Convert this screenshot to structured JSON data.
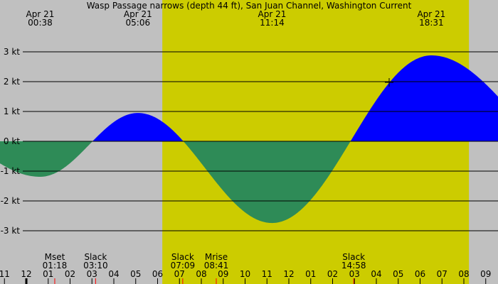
{
  "chart_data": {
    "type": "area",
    "title": "Wasp Passage narrows (depth 44 ft), San Juan Channel, Washington Current",
    "unit": "kt",
    "y_ticks": [
      3,
      2,
      1,
      0,
      -1,
      -2,
      -3
    ],
    "y_tick_labels": [
      "3 kt",
      "2 kt",
      "1 kt",
      "0 kt",
      "-1 kt",
      "-2 kt",
      "-3 kt"
    ],
    "ylim": [
      -4.7,
      4.7
    ],
    "grid": true,
    "x_tick_labels": [
      "11",
      "12",
      "01",
      "02",
      "03",
      "04",
      "05",
      "06",
      "07",
      "08",
      "09",
      "10",
      "11",
      "12",
      "01",
      "02",
      "03",
      "04",
      "05",
      "06",
      "07",
      "08",
      "09"
    ],
    "daylight": {
      "start": "06:13",
      "end": "20:14"
    },
    "extremes": [
      {
        "date": "Apr 21",
        "time": "00:38",
        "value": -1.19
      },
      {
        "date": "Apr 21",
        "time": "05:06",
        "value": 0.95
      },
      {
        "date": "Apr 21",
        "time": "11:14",
        "value": -2.74
      },
      {
        "date": "Apr 21",
        "time": "18:31",
        "value": 2.88
      }
    ],
    "events": [
      {
        "label": "Mset",
        "time": "01:18"
      },
      {
        "label": "Slack",
        "time": "03:10"
      },
      {
        "label": "Slack",
        "time": "07:09"
      },
      {
        "label": "Mrise",
        "time": "08:41"
      },
      {
        "label": "Slack",
        "time": "14:58"
      }
    ],
    "colors": {
      "flood": "#0000ff",
      "ebb": "#2e8b57",
      "day": "#cccc00",
      "night": "#c0c0c0",
      "event_tick": "#ff0000"
    }
  }
}
